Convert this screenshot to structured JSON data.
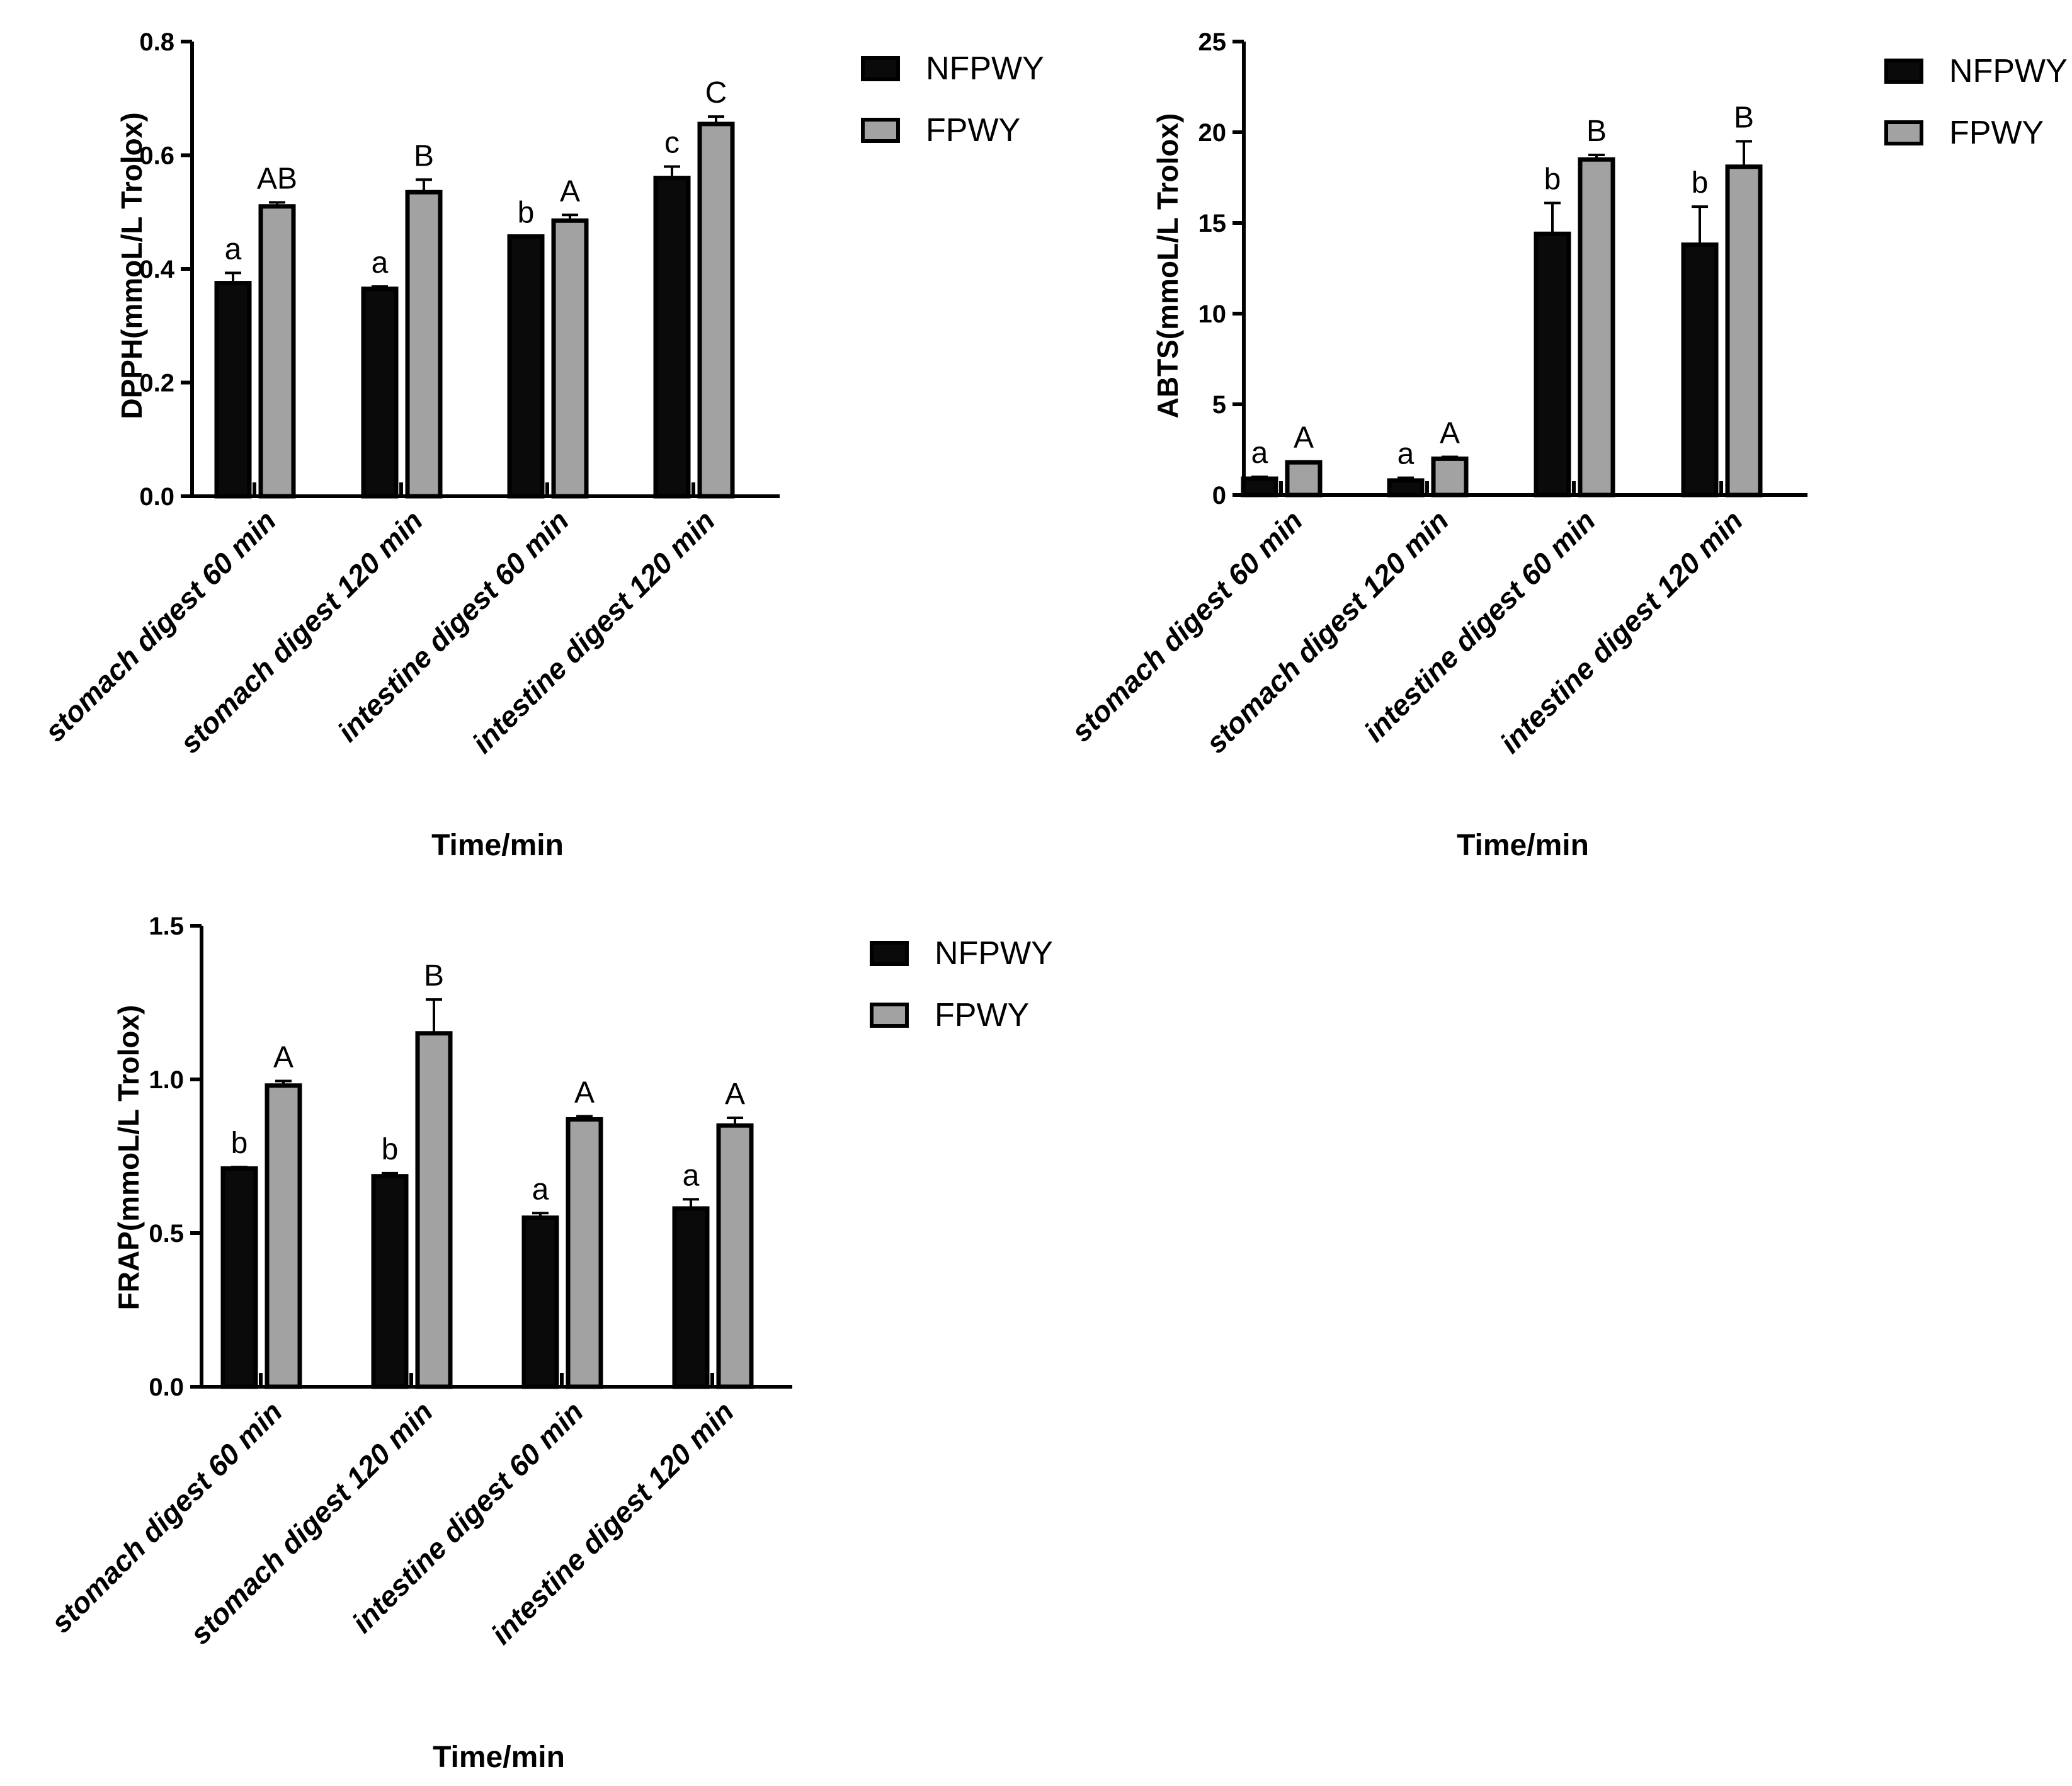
{
  "colors": {
    "series_0": "#0a0a0a",
    "series_1": "#a2a2a2",
    "axis": "#000000",
    "background": "#ffffff"
  },
  "chart_data": [
    {
      "id": "dpph",
      "type": "bar",
      "ylabel": "DPPH(mmoL/L Trolox)",
      "xlabel": "Time/min",
      "categories": [
        "stomach digest 60 min",
        "stomach digest 120 min",
        "intestine digest 60 min",
        "intestine digest 120 min"
      ],
      "ylim": [
        0,
        0.8
      ],
      "yticks": [
        0.0,
        0.2,
        0.4,
        0.6,
        0.8
      ],
      "ytick_labels": [
        "0.0",
        "0.2",
        "0.4",
        "0.6",
        "0.8"
      ],
      "legend": [
        "NFPWY",
        "FPWY"
      ],
      "legend_position": "top-right",
      "series": [
        {
          "name": "NFPWY",
          "values": [
            0.375,
            0.365,
            0.457,
            0.56
          ],
          "errors": [
            0.018,
            0.004,
            0.0,
            0.02
          ],
          "letters": [
            "a",
            "a",
            "b",
            "c"
          ]
        },
        {
          "name": "FPWY",
          "values": [
            0.51,
            0.535,
            0.485,
            0.655
          ],
          "errors": [
            0.007,
            0.022,
            0.01,
            0.013
          ],
          "letters": [
            "AB",
            "B",
            "A",
            "C"
          ]
        }
      ]
    },
    {
      "id": "abts",
      "type": "bar",
      "ylabel": "ABTS(mmoL/L Trolox)",
      "xlabel": "Time/min",
      "categories": [
        "stomach digest 60 min",
        "stomach digest 120 min",
        "intestine digest 60 min",
        "intestine digest 120 min"
      ],
      "ylim": [
        0,
        25
      ],
      "yticks": [
        0,
        5,
        10,
        15,
        20,
        25
      ],
      "ytick_labels": [
        "0",
        "5",
        "10",
        "15",
        "20",
        "25"
      ],
      "legend": [
        "NFPWY",
        "FPWY"
      ],
      "legend_position": "top-right",
      "series": [
        {
          "name": "NFPWY",
          "values": [
            0.9,
            0.8,
            14.4,
            13.8
          ],
          "errors": [
            0.1,
            0.15,
            1.7,
            2.1
          ],
          "letters": [
            "a",
            "a",
            "b",
            "b"
          ]
        },
        {
          "name": "FPWY",
          "values": [
            1.8,
            2.0,
            18.5,
            18.1
          ],
          "errors": [
            0.05,
            0.1,
            0.25,
            1.4
          ],
          "letters": [
            "A",
            "A",
            "B",
            "B"
          ]
        }
      ]
    },
    {
      "id": "frap",
      "type": "bar",
      "ylabel": "FRAP(mmoL/L Trolox)",
      "xlabel": "Time/min",
      "categories": [
        "stomach digest 60 min",
        "stomach digest 120 min",
        "intestine digest 60 min",
        "intestine digest 120 min"
      ],
      "ylim": [
        0,
        1.5
      ],
      "yticks": [
        0.0,
        0.5,
        1.0,
        1.5
      ],
      "ytick_labels": [
        "0.0",
        "0.5",
        "1.0",
        "1.5"
      ],
      "legend": [
        "NFPWY",
        "FPWY"
      ],
      "legend_position": "top-right",
      "series": [
        {
          "name": "NFPWY",
          "values": [
            0.71,
            0.685,
            0.55,
            0.58
          ],
          "errors": [
            0.005,
            0.01,
            0.015,
            0.03
          ],
          "letters": [
            "b",
            "b",
            "a",
            "a"
          ]
        },
        {
          "name": "FPWY",
          "values": [
            0.98,
            1.15,
            0.87,
            0.85
          ],
          "errors": [
            0.015,
            0.11,
            0.01,
            0.025
          ],
          "letters": [
            "A",
            "B",
            "A",
            "A"
          ]
        }
      ]
    }
  ]
}
